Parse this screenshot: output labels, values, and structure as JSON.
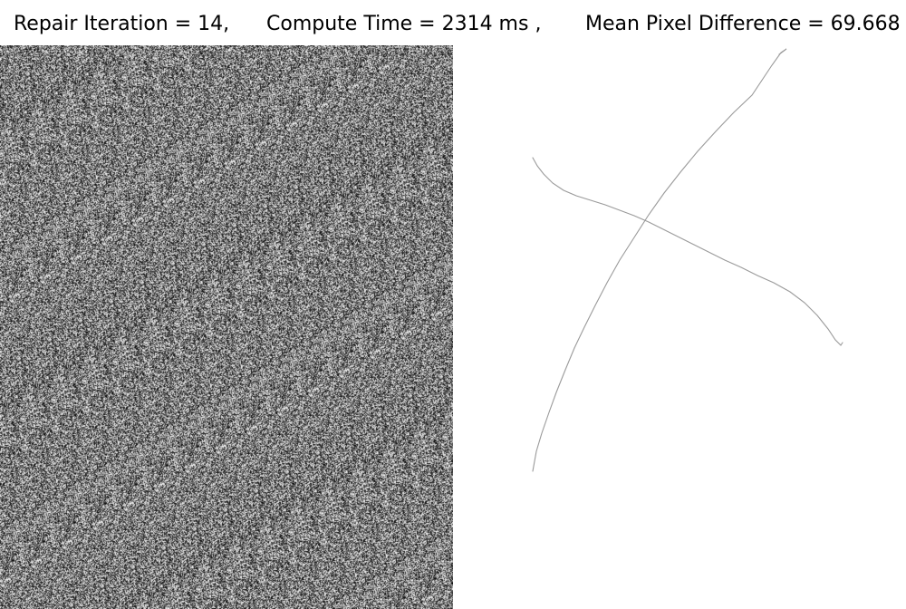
{
  "status_bar": {
    "repair_iteration": "Repair Iteration = 14,",
    "compute_time": "Compute Time = 2314 ms ,",
    "mean_pixel_difference": "Mean Pixel Difference = 69.668"
  },
  "panels": {
    "left": "noise-image",
    "right": "cross-sketch"
  },
  "colors": {
    "background": "#ffffff",
    "text": "#000000",
    "stroke": "#9a9a9a"
  }
}
